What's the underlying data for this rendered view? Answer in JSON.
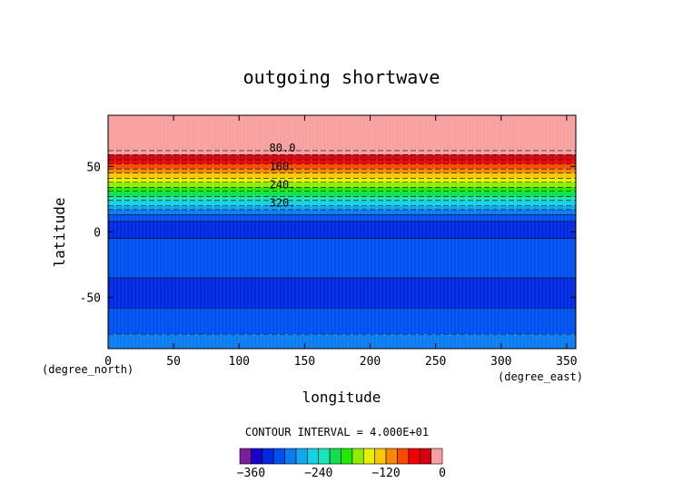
{
  "chart_data": {
    "type": "heatmap",
    "title": "outgoing shortwave",
    "xlabel": "longitude",
    "ylabel": "latitude",
    "x_unit": "(degree_east)",
    "y_unit": "(degree_north)",
    "xlim": [
      0,
      357
    ],
    "ylim": [
      -89,
      89
    ],
    "xticks": [
      0,
      50,
      100,
      150,
      200,
      250,
      300,
      350
    ],
    "yticks": [
      -50,
      0,
      50
    ],
    "contour_interval_text": "CONTOUR INTERVAL = 4.000E+01",
    "contour_labels": [
      {
        "text": "80.0",
        "lat": 64
      },
      {
        "text": "160.",
        "lat": 50
      },
      {
        "text": "240.",
        "lat": 36
      },
      {
        "text": "320.",
        "lat": 22
      }
    ],
    "bands": [
      {
        "lat": [
          62,
          89
        ],
        "value": -20
      },
      {
        "lat": [
          59,
          62
        ],
        "value": -40
      },
      {
        "lat": [
          55,
          59
        ],
        "value": -60
      },
      {
        "lat": [
          52,
          55
        ],
        "value": -80
      },
      {
        "lat": [
          48,
          52
        ],
        "value": -100
      },
      {
        "lat": [
          45,
          48
        ],
        "value": -120
      },
      {
        "lat": [
          41,
          45
        ],
        "value": -140
      },
      {
        "lat": [
          38,
          41
        ],
        "value": -160
      },
      {
        "lat": [
          34,
          38
        ],
        "value": -180
      },
      {
        "lat": [
          31,
          34
        ],
        "value": -200
      },
      {
        "lat": [
          27,
          31
        ],
        "value": -220
      },
      {
        "lat": [
          24,
          27
        ],
        "value": -240
      },
      {
        "lat": [
          20,
          24
        ],
        "value": -260
      },
      {
        "lat": [
          17,
          20
        ],
        "value": -280
      },
      {
        "lat": [
          13,
          17
        ],
        "value": -300
      },
      {
        "lat": [
          8,
          13
        ],
        "value": -320
      },
      {
        "lat": [
          -5,
          8
        ],
        "value": -340
      },
      {
        "lat": [
          -35,
          -5
        ],
        "value": -320
      },
      {
        "lat": [
          -58,
          -35
        ],
        "value": -340
      },
      {
        "lat": [
          -78,
          -58
        ],
        "value": -320
      },
      {
        "lat": [
          -89,
          -78
        ],
        "value": -300
      }
    ],
    "colorbar": {
      "ticks": [
        -360,
        -240,
        -120,
        0
      ],
      "colors": [
        "#7a1f9a",
        "#1c00c8",
        "#0028e0",
        "#0050f0",
        "#0a7cf0",
        "#10a6f0",
        "#14d2e6",
        "#18e6b4",
        "#10e050",
        "#20ea00",
        "#90ec00",
        "#e8f000",
        "#f8c800",
        "#f88800",
        "#f84a00",
        "#f00000",
        "#d40010",
        "#f8a0a0"
      ]
    }
  }
}
